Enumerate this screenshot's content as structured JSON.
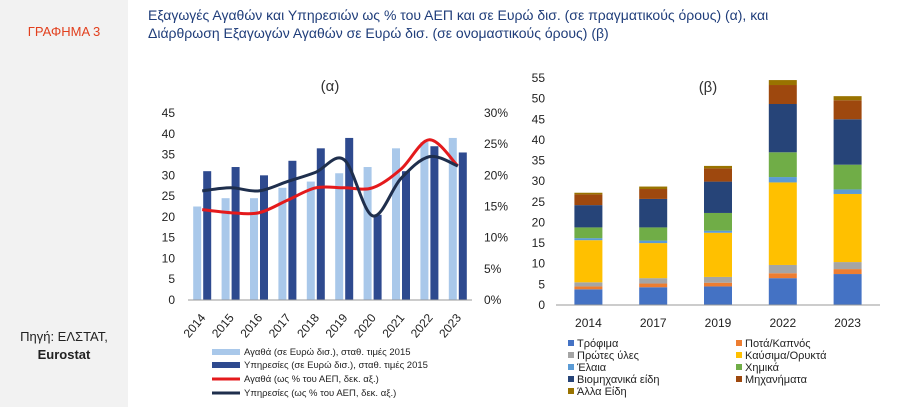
{
  "sidebar": {
    "graph_label": "ΓΡΑΦΗΜΑ 3",
    "source_line1": "Πηγή: ΕΛΣΤΑΤ,",
    "source_line2": "Eurostat"
  },
  "title": {
    "line1": "Εξαγωγές Αγαθών και Υπηρεσιών  ως % του ΑΕΠ και σε Ευρώ δισ. (σε πραγματικούς όρους) (α), και",
    "line2": "Διάρθρωση Εξαγωγών Αγαθών σε Ευρώ δισ. (σε ονομαστικούς όρους) (β)"
  },
  "colors": {
    "goods_bar": "#a9c8ea",
    "services_bar": "#2e4a8f",
    "goods_line": "#e41a1c",
    "services_line": "#1f2f4d"
  },
  "chart_data": [
    {
      "type": "bar",
      "panel_label": "(α)",
      "categories": [
        "2014",
        "2015",
        "2016",
        "2017",
        "2018",
        "2019",
        "2020",
        "2021",
        "2022",
        "2023"
      ],
      "ylim": [
        0,
        45
      ],
      "y_ticks": [
        "0",
        "5",
        "10",
        "15",
        "20",
        "25",
        "30",
        "35",
        "40",
        "45"
      ],
      "y2lim": [
        0,
        0.3
      ],
      "y2_ticks": [
        "0%",
        "5%",
        "10%",
        "15%",
        "20%",
        "25%",
        "30%"
      ],
      "series": [
        {
          "name": "Αγαθά (σε Ευρώ δισ.), σταθ. τιμές 2015",
          "kind": "bar",
          "axis": "left",
          "values": [
            22.5,
            24.5,
            24.5,
            27,
            28.5,
            30.5,
            32,
            36.5,
            38,
            39
          ]
        },
        {
          "name": "Υπηρεσίες (σε Ευρώ δισ.), σταθ. τιμές 2015",
          "kind": "bar",
          "axis": "left",
          "values": [
            31,
            32,
            30,
            33.5,
            36.5,
            39,
            20.5,
            31,
            37,
            35.5
          ]
        },
        {
          "name": "Αγαθά (ως % του ΑΕΠ, δεκ. αξ.)",
          "kind": "line",
          "axis": "right",
          "values": [
            0.145,
            0.14,
            0.14,
            0.16,
            0.18,
            0.18,
            0.18,
            0.21,
            0.257,
            0.215
          ]
        },
        {
          "name": "Υπηρεσίες (ως % του ΑΕΠ, δεκ. αξ.)",
          "kind": "line",
          "axis": "right",
          "values": [
            0.175,
            0.18,
            0.175,
            0.19,
            0.205,
            0.225,
            0.135,
            0.195,
            0.23,
            0.215
          ]
        }
      ]
    },
    {
      "type": "bar",
      "stacked": true,
      "panel_label": "(β)",
      "categories": [
        "2014",
        "2017",
        "2019",
        "2022",
        "2023"
      ],
      "ylim": [
        0,
        55
      ],
      "y_ticks": [
        "0",
        "5",
        "10",
        "15",
        "20",
        "25",
        "30",
        "35",
        "40",
        "45",
        "50",
        "55"
      ],
      "series": [
        {
          "name": "Τρόφιμα",
          "color": "#4472c4",
          "values": [
            3.8,
            4.3,
            4.5,
            6.5,
            7.5
          ]
        },
        {
          "name": "Ποτά/Καπνός",
          "color": "#ed7d31",
          "values": [
            0.7,
            0.9,
            0.9,
            1.2,
            1.2
          ]
        },
        {
          "name": "Πρώτες ύλες",
          "color": "#a5a5a5",
          "values": [
            1.0,
            1.3,
            1.4,
            2.0,
            1.7
          ]
        },
        {
          "name": "Καύσιμα/Ορυκτά",
          "color": "#ffc000",
          "values": [
            10.2,
            8.5,
            10.7,
            20.0,
            16.5
          ]
        },
        {
          "name": "Έλαια",
          "color": "#5b9bd5",
          "values": [
            0.5,
            0.6,
            0.5,
            1.3,
            1.1
          ]
        },
        {
          "name": "Χημικά",
          "color": "#70ad47",
          "values": [
            2.6,
            3.2,
            4.3,
            6.0,
            6.0
          ]
        },
        {
          "name": "Βιομηχανικά είδη",
          "color": "#264478",
          "values": [
            5.4,
            6.9,
            7.6,
            11.7,
            11.0
          ]
        },
        {
          "name": "Μηχανήματα",
          "color": "#9e480e",
          "values": [
            2.6,
            2.4,
            3.2,
            4.6,
            4.6
          ]
        },
        {
          "name": "Άλλα Είδη",
          "color": "#997300",
          "values": [
            0.4,
            0.6,
            0.6,
            1.2,
            1.0
          ]
        }
      ]
    }
  ]
}
